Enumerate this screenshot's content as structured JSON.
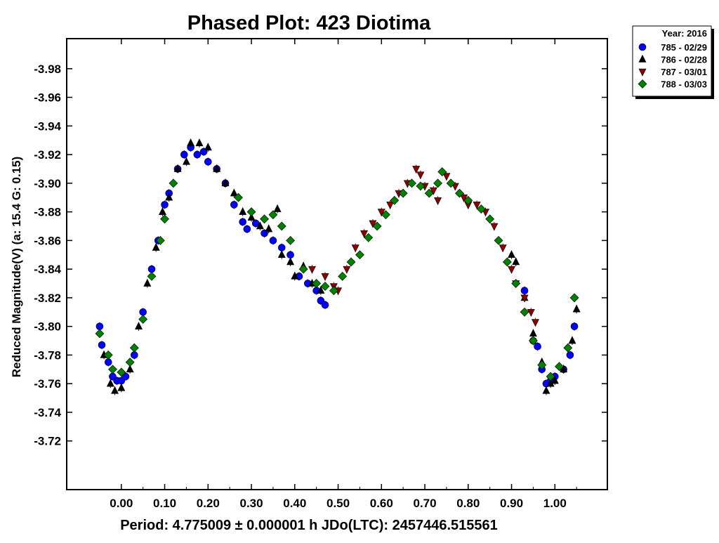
{
  "chart_data": {
    "type": "scatter",
    "title": "Phased Plot: 423 Diotima",
    "xlabel": "Period: 4.775009 ± 0.000001 h  JDo(LTC): 2457446.515561",
    "ylabel": "Reduced Magnitude(V)   (a: 15.4  G: 0.15)",
    "xlim": [
      -0.126,
      1.121
    ],
    "ylim": [
      -4.001,
      -3.686
    ],
    "y_inverted": true,
    "x_ticks": [
      "0.00",
      "0.10",
      "0.20",
      "0.30",
      "0.40",
      "0.50",
      "0.60",
      "0.70",
      "0.80",
      "0.90",
      "1.00"
    ],
    "y_ticks": [
      "-3.98",
      "-3.96",
      "-3.94",
      "-3.92",
      "-3.90",
      "-3.88",
      "-3.86",
      "-3.84",
      "-3.82",
      "-3.80",
      "-3.78",
      "-3.76",
      "-3.74",
      "-3.72"
    ],
    "grid": false,
    "legend": {
      "placement": "outside-top-right",
      "title": "Year: 2016"
    },
    "series": [
      {
        "name": "785 - 02/29",
        "marker": "circle",
        "color": "#0000ff",
        "points": [
          [
            -0.05,
            -3.8
          ],
          [
            -0.045,
            -3.787
          ],
          [
            -0.03,
            -3.775
          ],
          [
            -0.02,
            -3.765
          ],
          [
            -0.01,
            -3.762
          ],
          [
            0.0,
            -3.762
          ],
          [
            0.01,
            -3.765
          ],
          [
            0.03,
            -3.78
          ],
          [
            0.05,
            -3.81
          ],
          [
            0.07,
            -3.84
          ],
          [
            0.085,
            -3.86
          ],
          [
            0.1,
            -3.885
          ],
          [
            0.11,
            -3.893
          ],
          [
            0.13,
            -3.91
          ],
          [
            0.145,
            -3.92
          ],
          [
            0.16,
            -3.925
          ],
          [
            0.175,
            -3.92
          ],
          [
            0.19,
            -3.922
          ],
          [
            0.2,
            -3.915
          ],
          [
            0.22,
            -3.91
          ],
          [
            0.24,
            -3.9
          ],
          [
            0.26,
            -3.885
          ],
          [
            0.28,
            -3.873
          ],
          [
            0.29,
            -3.868
          ],
          [
            0.31,
            -3.872
          ],
          [
            0.33,
            -3.865
          ],
          [
            0.35,
            -3.86
          ],
          [
            0.37,
            -3.855
          ],
          [
            0.39,
            -3.85
          ],
          [
            0.41,
            -3.835
          ],
          [
            0.43,
            -3.83
          ],
          [
            0.45,
            -3.825
          ],
          [
            0.46,
            -3.818
          ],
          [
            0.47,
            -3.815
          ],
          [
            0.93,
            -3.825
          ],
          [
            0.95,
            -3.79
          ],
          [
            0.96,
            -3.786
          ],
          [
            0.97,
            -3.77
          ],
          [
            0.98,
            -3.76
          ],
          [
            0.99,
            -3.762
          ],
          [
            1.0,
            -3.765
          ],
          [
            1.02,
            -3.77
          ],
          [
            1.035,
            -3.78
          ],
          [
            1.045,
            -3.8
          ]
        ]
      },
      {
        "name": "786 - 02/28",
        "marker": "triangle-up",
        "color": "#000000",
        "points": [
          [
            -0.04,
            -3.78
          ],
          [
            -0.025,
            -3.76
          ],
          [
            -0.015,
            -3.755
          ],
          [
            0.0,
            -3.757
          ],
          [
            0.02,
            -3.77
          ],
          [
            0.04,
            -3.8
          ],
          [
            0.06,
            -3.83
          ],
          [
            0.08,
            -3.855
          ],
          [
            0.095,
            -3.88
          ],
          [
            0.11,
            -3.89
          ],
          [
            0.13,
            -3.91
          ],
          [
            0.15,
            -3.915
          ],
          [
            0.16,
            -3.928
          ],
          [
            0.18,
            -3.928
          ],
          [
            0.2,
            -3.925
          ],
          [
            0.22,
            -3.91
          ],
          [
            0.24,
            -3.9
          ],
          [
            0.26,
            -3.893
          ],
          [
            0.28,
            -3.88
          ],
          [
            0.3,
            -3.876
          ],
          [
            0.32,
            -3.87
          ],
          [
            0.34,
            -3.868
          ],
          [
            0.36,
            -3.882
          ],
          [
            0.37,
            -3.85
          ],
          [
            0.39,
            -3.845
          ],
          [
            0.4,
            -3.835
          ],
          [
            0.42,
            -3.842
          ],
          [
            0.44,
            -3.83
          ],
          [
            0.46,
            -3.825
          ],
          [
            0.9,
            -3.85
          ],
          [
            0.91,
            -3.845
          ],
          [
            0.93,
            -3.82
          ],
          [
            0.95,
            -3.795
          ],
          [
            0.97,
            -3.775
          ],
          [
            0.98,
            -3.755
          ],
          [
            0.99,
            -3.76
          ],
          [
            1.0,
            -3.762
          ],
          [
            1.02,
            -3.77
          ],
          [
            1.04,
            -3.79
          ],
          [
            1.05,
            -3.812
          ]
        ]
      },
      {
        "name": "787 - 03/01",
        "marker": "triangle-down",
        "color": "#8b0000",
        "points": [
          [
            0.44,
            -3.84
          ],
          [
            0.47,
            -3.835
          ],
          [
            0.49,
            -3.828
          ],
          [
            0.5,
            -3.825
          ],
          [
            0.52,
            -3.84
          ],
          [
            0.54,
            -3.855
          ],
          [
            0.56,
            -3.865
          ],
          [
            0.58,
            -3.872
          ],
          [
            0.6,
            -3.88
          ],
          [
            0.62,
            -3.885
          ],
          [
            0.64,
            -3.893
          ],
          [
            0.66,
            -3.9
          ],
          [
            0.68,
            -3.91
          ],
          [
            0.69,
            -3.906
          ],
          [
            0.7,
            -3.898
          ],
          [
            0.72,
            -3.895
          ],
          [
            0.73,
            -3.888
          ],
          [
            0.75,
            -3.905
          ],
          [
            0.77,
            -3.898
          ],
          [
            0.79,
            -3.89
          ],
          [
            0.8,
            -3.885
          ],
          [
            0.82,
            -3.885
          ],
          [
            0.84,
            -3.88
          ],
          [
            0.86,
            -3.87
          ],
          [
            0.88,
            -3.855
          ],
          [
            0.9,
            -3.84
          ],
          [
            0.91,
            -3.83
          ],
          [
            0.93,
            -3.82
          ],
          [
            0.945,
            -3.81
          ],
          [
            0.955,
            -3.803
          ]
        ]
      },
      {
        "name": "788 - 03/03",
        "marker": "diamond",
        "color": "#008000",
        "points": [
          [
            -0.05,
            -3.795
          ],
          [
            -0.03,
            -3.78
          ],
          [
            -0.02,
            -3.77
          ],
          [
            0.0,
            -3.768
          ],
          [
            0.02,
            -3.775
          ],
          [
            0.03,
            -3.785
          ],
          [
            0.05,
            -3.805
          ],
          [
            0.07,
            -3.835
          ],
          [
            0.09,
            -3.86
          ],
          [
            0.1,
            -3.875
          ],
          [
            0.12,
            -3.9
          ],
          [
            0.27,
            -3.89
          ],
          [
            0.3,
            -3.88
          ],
          [
            0.33,
            -3.875
          ],
          [
            0.35,
            -3.878
          ],
          [
            0.37,
            -3.87
          ],
          [
            0.39,
            -3.86
          ],
          [
            0.42,
            -3.84
          ],
          [
            0.45,
            -3.83
          ],
          [
            0.47,
            -3.828
          ],
          [
            0.49,
            -3.825
          ],
          [
            0.51,
            -3.835
          ],
          [
            0.53,
            -3.845
          ],
          [
            0.55,
            -3.85
          ],
          [
            0.57,
            -3.862
          ],
          [
            0.59,
            -3.87
          ],
          [
            0.61,
            -3.878
          ],
          [
            0.63,
            -3.888
          ],
          [
            0.65,
            -3.893
          ],
          [
            0.67,
            -3.9
          ],
          [
            0.69,
            -3.898
          ],
          [
            0.71,
            -3.893
          ],
          [
            0.73,
            -3.9
          ],
          [
            0.74,
            -3.908
          ],
          [
            0.76,
            -3.9
          ],
          [
            0.78,
            -3.893
          ],
          [
            0.8,
            -3.888
          ],
          [
            0.83,
            -3.882
          ],
          [
            0.85,
            -3.875
          ],
          [
            0.87,
            -3.86
          ],
          [
            0.89,
            -3.845
          ],
          [
            0.91,
            -3.83
          ],
          [
            0.93,
            -3.81
          ],
          [
            0.95,
            -3.79
          ],
          [
            0.97,
            -3.773
          ],
          [
            0.99,
            -3.765
          ],
          [
            1.01,
            -3.772
          ],
          [
            1.03,
            -3.785
          ],
          [
            1.045,
            -3.82
          ]
        ]
      }
    ]
  }
}
